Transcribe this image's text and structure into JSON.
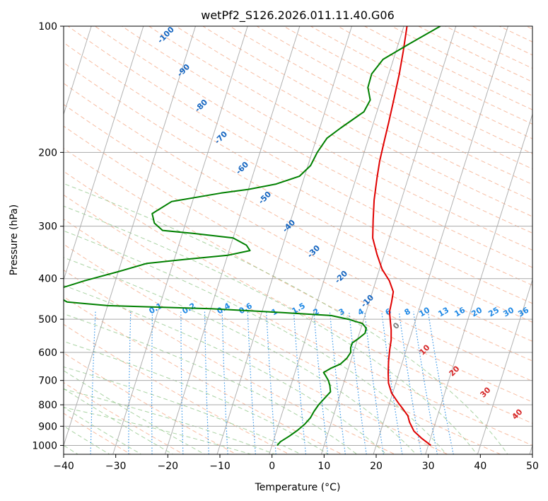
{
  "chart_data": {
    "type": "skew-t log-p",
    "title": "wetPf2_S126.2026.011.11.40.G06",
    "xlabel": "Temperature (°C)",
    "ylabel": "Pressure (hPa)",
    "xlim": [
      -40,
      50
    ],
    "ylim": [
      1050,
      100
    ],
    "y_scale": "log",
    "grid": true,
    "x_ticks": [
      "−40",
      "−30",
      "−20",
      "−10",
      "0",
      "10",
      "20",
      "30",
      "40",
      "50"
    ],
    "y_ticks": [
      "100",
      "200",
      "300",
      "400",
      "500",
      "600",
      "700",
      "800",
      "900",
      "1000"
    ],
    "series": [
      {
        "color": "#e00000",
        "points": [
          [
            1000,
            30.5
          ],
          [
            960,
            28.2
          ],
          [
            925,
            26.4
          ],
          [
            880,
            25.0
          ],
          [
            850,
            24.3
          ],
          [
            820,
            23.0
          ],
          [
            790,
            21.6
          ],
          [
            750,
            19.8
          ],
          [
            710,
            18.6
          ],
          [
            670,
            17.9
          ],
          [
            630,
            17.3
          ],
          [
            590,
            16.8
          ],
          [
            560,
            16.5
          ],
          [
            530,
            15.9
          ],
          [
            505,
            15.2
          ],
          [
            480,
            14.5
          ],
          [
            455,
            14.3
          ],
          [
            430,
            14.0
          ],
          [
            405,
            12.6
          ],
          [
            380,
            10.5
          ],
          [
            350,
            8.6
          ],
          [
            320,
            6.8
          ],
          [
            290,
            5.8
          ],
          [
            260,
            4.8
          ],
          [
            230,
            4.0
          ],
          [
            210,
            3.5
          ],
          [
            190,
            3.2
          ],
          [
            170,
            2.9
          ],
          [
            150,
            2.5
          ],
          [
            130,
            2.0
          ],
          [
            115,
            1.4
          ],
          [
            100,
            0.6
          ]
        ]
      },
      {
        "color": "#008000",
        "points": [
          [
            1000,
            1.0
          ],
          [
            980,
            1.4
          ],
          [
            950,
            2.8
          ],
          [
            920,
            4.0
          ],
          [
            890,
            5.0
          ],
          [
            860,
            5.7
          ],
          [
            830,
            6.0
          ],
          [
            800,
            6.5
          ],
          [
            770,
            7.3
          ],
          [
            745,
            8.0
          ],
          [
            720,
            7.5
          ],
          [
            700,
            6.9
          ],
          [
            680,
            6.0
          ],
          [
            670,
            5.5
          ],
          [
            655,
            6.6
          ],
          [
            640,
            8.2
          ],
          [
            620,
            9.1
          ],
          [
            600,
            9.5
          ],
          [
            585,
            9.2
          ],
          [
            570,
            9.2
          ],
          [
            555,
            10.2
          ],
          [
            540,
            11.1
          ],
          [
            525,
            11.0
          ],
          [
            512,
            10.0
          ],
          [
            500,
            7.0
          ],
          [
            490,
            3.5
          ],
          [
            482,
            -6.0
          ],
          [
            472,
            -20.0
          ],
          [
            464,
            -40.0
          ],
          [
            455,
            -48.0
          ],
          [
            430,
            -52.0
          ],
          [
            405,
            -46.0
          ],
          [
            385,
            -40.0
          ],
          [
            368,
            -35.0
          ],
          [
            360,
            -28.0
          ],
          [
            352,
            -20.0
          ],
          [
            343,
            -16.0
          ],
          [
            333,
            -17.0
          ],
          [
            320,
            -20.0
          ],
          [
            312,
            -28.0
          ],
          [
            307,
            -34.0
          ],
          [
            295,
            -36.0
          ],
          [
            280,
            -37.0
          ],
          [
            262,
            -34.0
          ],
          [
            250,
            -25.0
          ],
          [
            245,
            -20.0
          ],
          [
            238,
            -15.0
          ],
          [
            228,
            -11.0
          ],
          [
            215,
            -9.5
          ],
          [
            200,
            -9.0
          ],
          [
            185,
            -8.0
          ],
          [
            175,
            -6.0
          ],
          [
            160,
            -2.5
          ],
          [
            150,
            -2.0
          ],
          [
            140,
            -3.2
          ],
          [
            130,
            -3.3
          ],
          [
            120,
            -2.0
          ],
          [
            110,
            2.2
          ],
          [
            100,
            7.0
          ]
        ]
      }
    ],
    "dry_adiabat_labels": [
      "-100",
      "-90",
      "-80",
      "-70",
      "-60",
      "-50",
      "-40",
      "-30",
      "-20",
      "-10"
    ],
    "moist_adiabat_labels": [
      "0",
      "10",
      "20",
      "30",
      "40"
    ],
    "mixing_ratio_labels": [
      "0.1",
      "0.2",
      "0.4",
      "0.6",
      "1",
      "1.5",
      "2",
      "3",
      "4",
      "6",
      "8",
      "10",
      "13",
      "16",
      "20",
      "25",
      "30",
      "36"
    ],
    "colors": {
      "temperature": "#e00000",
      "dewpoint": "#008000",
      "dry_adiabats": "#f4a582",
      "moist_adiabats": "#86c07c",
      "mixing_ratio": "#1e88e5",
      "isotherms": "#9e9e9e",
      "isobars": "#aaaaaa"
    }
  }
}
